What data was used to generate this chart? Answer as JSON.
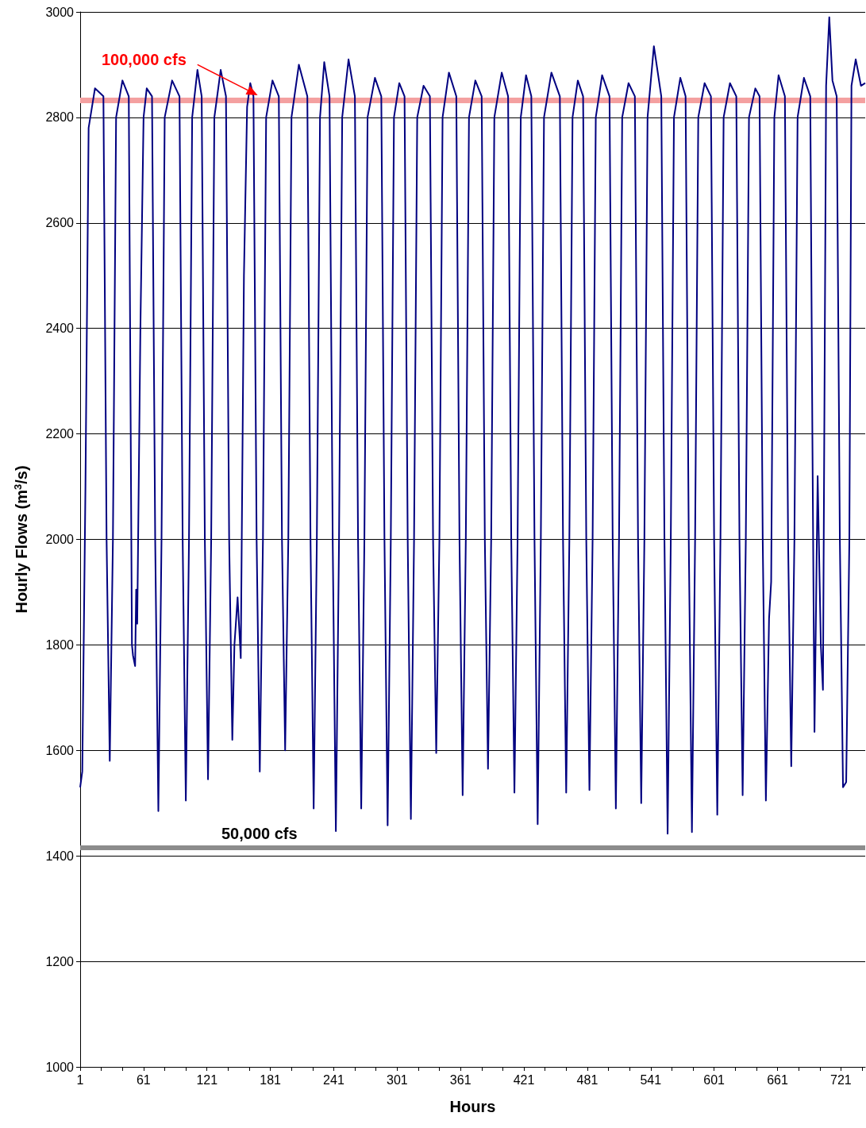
{
  "chart_data": {
    "type": "line",
    "xlabel": "Hours",
    "ylabel": "Hourly Flows (m$^{3}$/s)",
    "xlim": [
      1,
      744
    ],
    "ylim": [
      1000,
      3000
    ],
    "xticks": [
      1,
      {
        "value": 21,
        "label": null
      },
      {
        "value": 41,
        "label": null
      },
      61,
      {
        "value": 81,
        "label": null
      },
      {
        "value": 101,
        "label": null
      },
      121,
      {
        "value": 141,
        "label": null
      },
      {
        "value": 161,
        "label": null
      },
      181,
      {
        "value": 201,
        "label": null
      },
      {
        "value": 221,
        "label": null
      },
      241,
      {
        "value": 261,
        "label": null
      },
      {
        "value": 281,
        "label": null
      },
      301,
      {
        "value": 321,
        "label": null
      },
      {
        "value": 341,
        "label": null
      },
      361,
      {
        "value": 381,
        "label": null
      },
      {
        "value": 401,
        "label": null
      },
      421,
      {
        "value": 441,
        "label": null
      },
      {
        "value": 461,
        "label": null
      },
      481,
      {
        "value": 501,
        "label": null
      },
      {
        "value": 521,
        "label": null
      },
      541,
      {
        "value": 561,
        "label": null
      },
      {
        "value": 581,
        "label": null
      },
      601,
      {
        "value": 621,
        "label": null
      },
      {
        "value": 641,
        "label": null
      },
      661,
      {
        "value": 681,
        "label": null
      },
      {
        "value": 701,
        "label": null
      },
      721,
      {
        "value": 741,
        "label": null
      }
    ],
    "yticks": [
      1000,
      1200,
      1400,
      1600,
      1800,
      2000,
      2200,
      2400,
      2600,
      2800,
      3000
    ],
    "grid": "y",
    "marker": "none",
    "line_style": "solid",
    "ref_lines": [
      {
        "axis": "y",
        "value": 2832,
        "label": "100,000 cfs",
        "color": "#f4a0a0"
      },
      {
        "axis": "y",
        "value": 1416,
        "label": "50,000 cfs",
        "color": "#8c8c8c"
      }
    ],
    "series": [
      {
        "color": "#000080",
        "x": [
          1,
          3,
          6,
          9,
          15,
          23,
          26,
          29,
          32,
          35,
          41,
          47,
          50,
          51,
          53,
          54,
          55,
          58,
          61,
          64,
          69,
          72,
          75,
          78,
          81,
          88,
          95,
          98,
          101,
          104,
          107,
          112,
          116,
          119,
          122,
          125,
          128,
          134,
          139,
          142,
          145,
          147,
          150,
          153,
          156,
          159,
          162,
          165,
          168,
          171,
          174,
          177,
          183,
          189,
          192,
          195,
          198,
          201,
          208,
          216,
          219,
          222,
          225,
          228,
          232,
          237,
          240,
          243,
          246,
          249,
          255,
          261,
          264,
          267,
          270,
          273,
          280,
          286,
          289,
          292,
          295,
          298,
          303,
          308,
          311,
          314,
          317,
          320,
          326,
          332,
          335,
          338,
          341,
          344,
          350,
          357,
          360,
          363,
          366,
          369,
          375,
          381,
          384,
          387,
          390,
          393,
          400,
          406,
          409,
          412,
          415,
          418,
          423,
          428,
          431,
          434,
          437,
          440,
          447,
          455,
          458,
          461,
          464,
          467,
          472,
          477,
          480,
          483,
          486,
          489,
          495,
          502,
          505,
          508,
          511,
          514,
          520,
          526,
          529,
          532,
          535,
          538,
          544,
          551,
          554,
          557,
          560,
          563,
          569,
          574,
          577,
          580,
          583,
          586,
          592,
          598,
          601,
          604,
          607,
          610,
          616,
          622,
          625,
          628,
          631,
          634,
          640,
          644,
          647,
          650,
          653,
          655,
          658,
          662,
          668,
          671,
          674,
          677,
          680,
          686,
          692,
          694,
          696,
          699,
          702,
          704,
          707,
          710,
          713,
          717,
          720,
          723,
          726,
          729,
          731,
          735,
          740,
          744
        ],
        "values": [
          1530,
          1560,
          2100,
          2780,
          2855,
          2840,
          2000,
          1580,
          2000,
          2800,
          2870,
          2840,
          1800,
          1780,
          1760,
          1905,
          1840,
          2400,
          2800,
          2855,
          2840,
          2000,
          1485,
          2000,
          2800,
          2870,
          2840,
          2000,
          1505,
          2000,
          2800,
          2890,
          2840,
          2000,
          1545,
          2000,
          2800,
          2890,
          2840,
          2000,
          1620,
          1800,
          1890,
          1775,
          2500,
          2820,
          2865,
          2840,
          2000,
          1560,
          2000,
          2800,
          2870,
          2840,
          2000,
          1600,
          2000,
          2800,
          2900,
          2840,
          2000,
          1490,
          2000,
          2800,
          2905,
          2840,
          2000,
          1447,
          2000,
          2800,
          2910,
          2840,
          2000,
          1490,
          2000,
          2800,
          2875,
          2840,
          2000,
          1458,
          2000,
          2800,
          2865,
          2840,
          2000,
          1470,
          2000,
          2800,
          2860,
          2840,
          2000,
          1595,
          2000,
          2800,
          2885,
          2840,
          2000,
          1515,
          2000,
          2800,
          2870,
          2840,
          2000,
          1565,
          2000,
          2800,
          2885,
          2840,
          2000,
          1520,
          2000,
          2800,
          2880,
          2840,
          2000,
          1460,
          2000,
          2800,
          2885,
          2840,
          2000,
          1520,
          2000,
          2800,
          2870,
          2840,
          2000,
          1525,
          2000,
          2800,
          2880,
          2840,
          2000,
          1490,
          2000,
          2800,
          2865,
          2840,
          2000,
          1500,
          2000,
          2800,
          2935,
          2840,
          2000,
          1442,
          2000,
          2800,
          2875,
          2840,
          2000,
          1445,
          2000,
          2800,
          2865,
          2840,
          2000,
          1478,
          2000,
          2800,
          2865,
          2840,
          2000,
          1515,
          2000,
          2800,
          2855,
          2840,
          2000,
          1505,
          1850,
          1920,
          2800,
          2880,
          2840,
          2000,
          1570,
          2000,
          2800,
          2875,
          2840,
          2200,
          1635,
          2120,
          1800,
          1715,
          2860,
          2990,
          2870,
          2840,
          2000,
          1530,
          1540,
          2000,
          2860,
          2910,
          2860,
          2865
        ]
      }
    ]
  }
}
